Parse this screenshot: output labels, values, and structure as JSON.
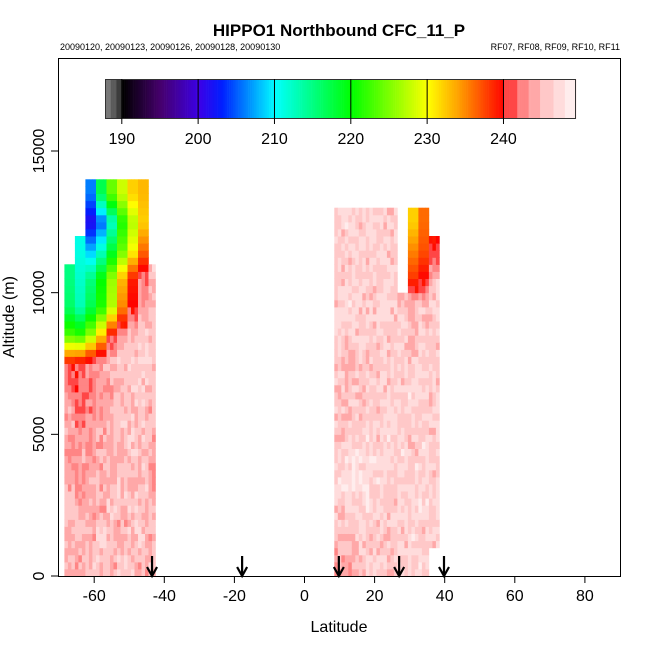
{
  "chart_data": {
    "type": "heatmap",
    "title": "HIPPO1 Northbound CFC_11_P",
    "subtitle_left": "20090120, 20090123, 20090126, 20090128, 20090130",
    "subtitle_right": "RF07, RF08, RF09, RF10, RF11",
    "xlabel": "Latitude",
    "ylabel": "Altitude (m)",
    "xlim": [
      -70,
      90
    ],
    "ylim": [
      0,
      18300
    ],
    "x_ticks": [
      -60,
      -40,
      -20,
      0,
      20,
      40,
      60,
      80
    ],
    "y_ticks": [
      0,
      5000,
      10000,
      15000
    ],
    "colorbar": {
      "range": [
        187.8,
        249.5
      ],
      "ticks": [
        190,
        200,
        210,
        220,
        230,
        240
      ]
    },
    "flight_markers_latitude": [
      -43.5,
      -17.8,
      9.8,
      27.0,
      39.8
    ],
    "segments": [
      {
        "lat_centers": [
          -67,
          -64,
          -61,
          -58,
          -55,
          -52,
          -49,
          -46,
          -44
        ],
        "alt_step_m": 1000,
        "rows_from_ground": [
          [
            245,
            244,
            246,
            245,
            244,
            246,
            245,
            244,
            245
          ],
          [
            244,
            245,
            244,
            246,
            245,
            244,
            245,
            246,
            244
          ],
          [
            245,
            244,
            245,
            244,
            246,
            245,
            246,
            244,
            245
          ],
          [
            244,
            243,
            244,
            245,
            244,
            246,
            245,
            246,
            244
          ],
          [
            243,
            244,
            243,
            244,
            245,
            244,
            246,
            245,
            244
          ],
          [
            244,
            242,
            243,
            244,
            245,
            246,
            245,
            246,
            245
          ],
          [
            243,
            241,
            242,
            243,
            244,
            245,
            246,
            245,
            244
          ],
          [
            240,
            241,
            243,
            244,
            245,
            246,
            246,
            247,
            246
          ],
          [
            223,
            222,
            226,
            232,
            240,
            243,
            245,
            246,
            246
          ],
          [
            216,
            213,
            217,
            221,
            227,
            235,
            240,
            244,
            245
          ],
          [
            215,
            212,
            215,
            220,
            226,
            233,
            239,
            242,
            245
          ],
          [
            null,
            211,
            208,
            212,
            218,
            224,
            230,
            236,
            null
          ],
          [
            null,
            null,
            201,
            205,
            212,
            221,
            227,
            232,
            null
          ],
          [
            null,
            null,
            206,
            217,
            224,
            228,
            232,
            233,
            null
          ]
        ]
      },
      {
        "lat_centers": [
          10,
          13,
          16,
          19,
          22,
          25,
          28,
          31,
          34,
          37
        ],
        "alt_step_m": 1000,
        "rows_from_ground": [
          [
            244,
            244,
            245,
            246,
            246,
            245,
            246,
            246,
            247,
            null
          ],
          [
            245,
            245,
            246,
            246,
            245,
            246,
            246,
            247,
            246,
            246
          ],
          [
            246,
            246,
            247,
            247,
            246,
            246,
            247,
            246,
            247,
            246
          ],
          [
            247,
            248,
            248,
            247,
            247,
            246,
            246,
            247,
            246,
            246
          ],
          [
            246,
            247,
            247,
            247,
            246,
            247,
            247,
            246,
            247,
            246
          ],
          [
            245,
            245,
            246,
            246,
            246,
            247,
            246,
            246,
            246,
            246
          ],
          [
            246,
            246,
            245,
            246,
            246,
            246,
            246,
            247,
            246,
            246
          ],
          [
            245,
            244,
            246,
            246,
            246,
            246,
            246,
            246,
            246,
            246
          ],
          [
            246,
            246,
            246,
            246,
            246,
            245,
            246,
            245,
            246,
            246
          ],
          [
            246,
            247,
            246,
            246,
            247,
            246,
            245,
            245,
            246,
            246
          ],
          [
            246,
            246,
            246,
            246,
            246,
            246,
            null,
            238,
            240,
            245
          ],
          [
            246,
            246,
            246,
            246,
            246,
            246,
            null,
            235,
            237,
            240
          ],
          [
            246,
            247,
            246,
            246,
            246,
            246,
            null,
            232,
            236,
            null
          ]
        ]
      }
    ]
  }
}
